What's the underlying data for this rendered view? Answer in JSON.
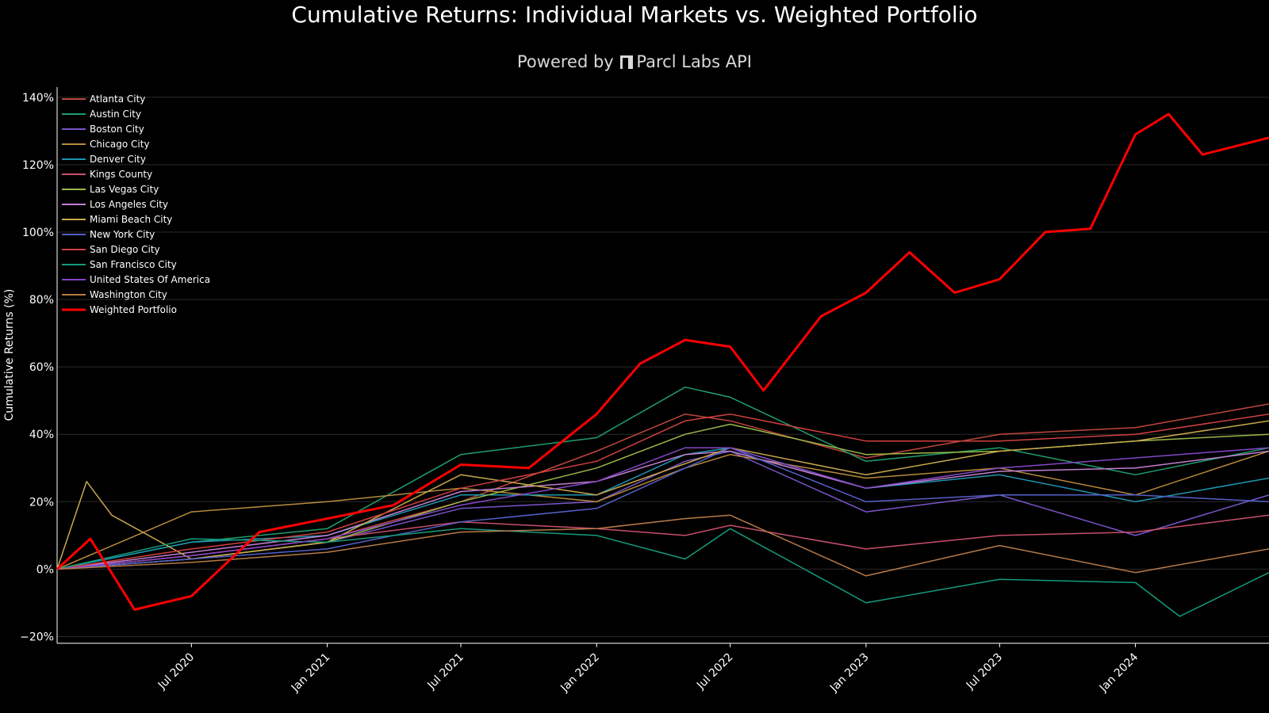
{
  "chart_data": {
    "type": "line",
    "title": "Cumulative Returns: Individual Markets vs. Weighted Portfolio",
    "brand": {
      "prefix": "Powered by",
      "name": "Parcl Labs API"
    },
    "xlabel": "",
    "ylabel": "Cumulative Returns (%)",
    "x_range": [
      "2020-01-01",
      "2024-06-30"
    ],
    "x_ticks": [
      {
        "date": "2020-07-01",
        "label": "Jul 2020"
      },
      {
        "date": "2021-01-01",
        "label": "Jan 2021"
      },
      {
        "date": "2021-07-01",
        "label": "Jul 2021"
      },
      {
        "date": "2022-01-01",
        "label": "Jan 2022"
      },
      {
        "date": "2022-07-01",
        "label": "Jul 2022"
      },
      {
        "date": "2023-01-01",
        "label": "Jan 2023"
      },
      {
        "date": "2023-07-01",
        "label": "Jul 2023"
      },
      {
        "date": "2024-01-01",
        "label": "Jan 2024"
      }
    ],
    "ylim": [
      -22,
      143
    ],
    "y_ticks": [
      {
        "value": -20,
        "label": "−20%"
      },
      {
        "value": 0,
        "label": "0%"
      },
      {
        "value": 20,
        "label": "20%"
      },
      {
        "value": 40,
        "label": "40%"
      },
      {
        "value": 60,
        "label": "60%"
      },
      {
        "value": 80,
        "label": "80%"
      },
      {
        "value": 100,
        "label": "100%"
      },
      {
        "value": 120,
        "label": "120%"
      },
      {
        "value": 140,
        "label": "140%"
      }
    ],
    "grid": "horizontal",
    "legend_position": "top-left",
    "colors": {
      "background": "#000000",
      "grid": "#2a2a2a",
      "axis": "#ffffff"
    },
    "series": [
      {
        "name": "Atlanta City",
        "color": "#c0463c",
        "x": [
          "2020-01-01",
          "2020-07-01",
          "2021-01-01",
          "2021-07-01",
          "2022-01-01",
          "2022-05-01",
          "2022-07-01",
          "2023-01-01",
          "2023-07-01",
          "2024-01-01",
          "2024-06-30"
        ],
        "y": [
          0,
          4,
          9,
          20,
          35,
          46,
          44,
          33,
          40,
          42,
          49
        ]
      },
      {
        "name": "Austin City",
        "color": "#1f9e6e",
        "x": [
          "2020-01-01",
          "2020-07-01",
          "2021-01-01",
          "2021-07-01",
          "2022-01-01",
          "2022-05-01",
          "2022-07-01",
          "2023-01-01",
          "2023-07-01",
          "2024-01-01",
          "2024-06-30"
        ],
        "y": [
          0,
          8,
          12,
          34,
          39,
          54,
          51,
          32,
          36,
          28,
          36
        ]
      },
      {
        "name": "Boston City",
        "color": "#7a55c9",
        "x": [
          "2020-01-01",
          "2020-07-01",
          "2021-01-01",
          "2021-07-01",
          "2022-01-01",
          "2022-05-01",
          "2022-07-01",
          "2023-01-01",
          "2023-07-01",
          "2024-01-01",
          "2024-06-30"
        ],
        "y": [
          0,
          3,
          8,
          18,
          20,
          32,
          35,
          17,
          22,
          10,
          22
        ]
      },
      {
        "name": "Chicago City",
        "color": "#b88a3c",
        "x": [
          "2020-01-01",
          "2020-07-01",
          "2021-01-01",
          "2021-07-01",
          "2022-01-01",
          "2022-05-01",
          "2022-07-01",
          "2023-01-01",
          "2023-07-01",
          "2024-01-01",
          "2024-06-30"
        ],
        "y": [
          0,
          17,
          20,
          24,
          20,
          30,
          34,
          27,
          30,
          22,
          35
        ]
      },
      {
        "name": "Denver City",
        "color": "#1e95b0",
        "x": [
          "2020-01-01",
          "2020-07-01",
          "2021-01-01",
          "2021-07-01",
          "2022-01-01",
          "2022-05-01",
          "2022-07-01",
          "2023-01-01",
          "2023-07-01",
          "2024-01-01",
          "2024-06-30"
        ],
        "y": [
          0,
          8,
          10,
          22,
          22,
          34,
          36,
          24,
          28,
          20,
          27
        ]
      },
      {
        "name": "Kings County",
        "color": "#c84f6d",
        "x": [
          "2020-01-01",
          "2020-07-01",
          "2021-01-01",
          "2021-07-01",
          "2022-01-01",
          "2022-05-01",
          "2022-07-01",
          "2023-01-01",
          "2023-07-01",
          "2024-01-01",
          "2024-06-30"
        ],
        "y": [
          0,
          4,
          9,
          14,
          12,
          10,
          13,
          6,
          10,
          11,
          16
        ]
      },
      {
        "name": "Las Vegas City",
        "color": "#9ab848",
        "x": [
          "2020-01-01",
          "2020-07-01",
          "2021-01-01",
          "2021-07-01",
          "2022-01-01",
          "2022-05-01",
          "2022-07-01",
          "2023-01-01",
          "2023-07-01",
          "2024-01-01",
          "2024-06-30"
        ],
        "y": [
          0,
          3,
          8,
          20,
          30,
          40,
          43,
          34,
          35,
          38,
          40
        ]
      },
      {
        "name": "Los Angeles City",
        "color": "#c27ed2",
        "x": [
          "2020-01-01",
          "2020-07-01",
          "2021-01-01",
          "2021-07-01",
          "2022-01-01",
          "2022-05-01",
          "2022-07-01",
          "2023-01-01",
          "2023-07-01",
          "2024-01-01",
          "2024-06-30"
        ],
        "y": [
          0,
          5,
          10,
          23,
          26,
          34,
          35,
          24,
          29,
          30,
          35
        ]
      },
      {
        "name": "Miami Beach City",
        "color": "#c8a84b",
        "x": [
          "2020-01-01",
          "2020-02-10",
          "2020-03-15",
          "2020-07-01",
          "2021-01-01",
          "2021-07-01",
          "2022-01-01",
          "2022-07-01",
          "2023-01-01",
          "2023-07-01",
          "2024-01-01",
          "2024-06-30"
        ],
        "y": [
          0,
          26,
          16,
          3,
          8,
          28,
          22,
          36,
          28,
          35,
          38,
          44
        ]
      },
      {
        "name": "New York City",
        "color": "#5560c8",
        "x": [
          "2020-01-01",
          "2020-07-01",
          "2021-01-01",
          "2021-07-01",
          "2022-01-01",
          "2022-05-01",
          "2022-07-01",
          "2023-01-01",
          "2023-07-01",
          "2024-01-01",
          "2024-06-30"
        ],
        "y": [
          0,
          3,
          6,
          14,
          18,
          30,
          36,
          20,
          22,
          22,
          20
        ]
      },
      {
        "name": "San Diego City",
        "color": "#d04040",
        "x": [
          "2020-01-01",
          "2020-07-01",
          "2021-01-01",
          "2021-07-01",
          "2022-01-01",
          "2022-05-01",
          "2022-07-01",
          "2023-01-01",
          "2023-07-01",
          "2024-01-01",
          "2024-06-30"
        ],
        "y": [
          0,
          6,
          11,
          24,
          32,
          44,
          46,
          38,
          38,
          40,
          46
        ]
      },
      {
        "name": "San Francisco City",
        "color": "#159c7c",
        "x": [
          "2020-01-01",
          "2020-07-01",
          "2021-01-01",
          "2021-07-01",
          "2022-01-01",
          "2022-05-01",
          "2022-07-01",
          "2023-01-01",
          "2023-07-01",
          "2024-01-01",
          "2024-03-01",
          "2024-06-30"
        ],
        "y": [
          0,
          9,
          8,
          12,
          10,
          3,
          12,
          -10,
          -3,
          -4,
          -14,
          -1
        ]
      },
      {
        "name": "United States Of America",
        "color": "#8447c6",
        "x": [
          "2020-01-01",
          "2020-07-01",
          "2021-01-01",
          "2021-07-01",
          "2022-01-01",
          "2022-05-01",
          "2022-07-01",
          "2023-01-01",
          "2023-07-01",
          "2024-01-01",
          "2024-06-30"
        ],
        "y": [
          0,
          4,
          9,
          19,
          26,
          36,
          36,
          24,
          30,
          33,
          36
        ]
      },
      {
        "name": "Washington City",
        "color": "#b87a48",
        "x": [
          "2020-01-01",
          "2020-07-01",
          "2021-01-01",
          "2021-07-01",
          "2022-01-01",
          "2022-05-01",
          "2022-07-01",
          "2023-01-01",
          "2023-07-01",
          "2024-01-01",
          "2024-06-30"
        ],
        "y": [
          0,
          2,
          5,
          11,
          12,
          15,
          16,
          -2,
          7,
          -1,
          6
        ]
      },
      {
        "name": "Weighted Portfolio",
        "color": "#ff0000",
        "emphasis": true,
        "x": [
          "2020-01-01",
          "2020-02-15",
          "2020-04-15",
          "2020-07-01",
          "2020-10-01",
          "2021-01-01",
          "2021-04-01",
          "2021-07-01",
          "2021-10-01",
          "2022-01-01",
          "2022-03-01",
          "2022-05-01",
          "2022-07-01",
          "2022-08-15",
          "2022-11-01",
          "2023-01-01",
          "2023-03-01",
          "2023-05-01",
          "2023-07-01",
          "2023-09-01",
          "2023-11-01",
          "2024-01-01",
          "2024-02-15",
          "2024-04-01",
          "2024-06-30"
        ],
        "y": [
          0,
          9,
          -12,
          -8,
          11,
          15,
          19,
          31,
          30,
          46,
          61,
          68,
          66,
          53,
          75,
          82,
          94,
          82,
          86,
          100,
          101,
          129,
          135,
          123,
          128
        ]
      }
    ]
  }
}
